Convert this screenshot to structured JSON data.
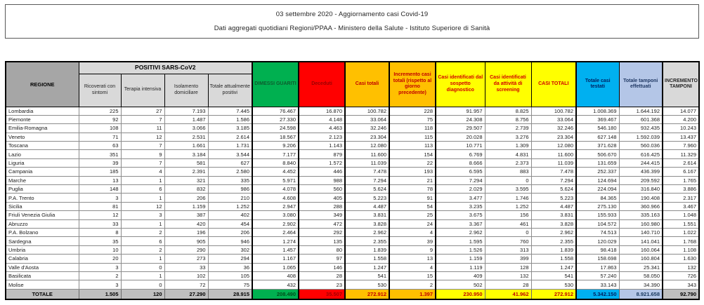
{
  "title": {
    "line1": "03 settembre 2020 - Aggiornamento casi Covid-19",
    "line2": "Dati aggregati quotidiani Regioni/PPAA - Ministero della Salute - Istituto Superiore di Sanità"
  },
  "colors": {
    "green": "#00b050",
    "red": "#ff0000",
    "gold": "#ffc000",
    "yellow": "#ffff00",
    "cyan": "#00b0f0",
    "periwinkle": "#b4c6e7",
    "header_gray": "#a6a6a6",
    "subheader_gray": "#d9d9d9",
    "totale_gray": "#bfbfbf"
  },
  "table": {
    "headers": {
      "regione": "REGIONE",
      "positivi_group": "POSITIVI SARS-CoV2",
      "ricoverati": "Ricoverati con sintomi",
      "terapia": "Terapia intensiva",
      "isolamento": "Isolamento domiciliare",
      "tot_positivi": "Totale attualmente positivi",
      "dimessi": "DIMESSI GUARITI",
      "deceduti": "Deceduti",
      "casi_totali": "Casi totali",
      "incremento_casi": "Incremento casi totali (rispetto al giorno precedente)",
      "sospetto": "Casi identificati dal sospetto diagnostico",
      "screening": "Casi identificati da attività di screening",
      "casi_totali_2": "CASI TOTALI",
      "testati": "Totale casi testati",
      "tamponi": "Totale tamponi effettuati",
      "incremento_tamponi": "INCREMENTO TAMPONI"
    },
    "rows": [
      {
        "regione": "Lombardia",
        "values": [
          "225",
          "27",
          "7.193",
          "7.445",
          "76.467",
          "16.870",
          "100.782",
          "228",
          "91.957",
          "8.825",
          "100.782",
          "1.008.369",
          "1.644.192",
          "14.077"
        ]
      },
      {
        "regione": "Piemonte",
        "values": [
          "92",
          "7",
          "1.487",
          "1.586",
          "27.330",
          "4.148",
          "33.064",
          "75",
          "24.308",
          "8.756",
          "33.064",
          "369.467",
          "601.368",
          "4.200"
        ]
      },
      {
        "regione": "Emilia-Romagna",
        "values": [
          "108",
          "11",
          "3.066",
          "3.185",
          "24.598",
          "4.463",
          "32.246",
          "118",
          "29.507",
          "2.739",
          "32.246",
          "546.180",
          "932.435",
          "10.243"
        ]
      },
      {
        "regione": "Veneto",
        "values": [
          "71",
          "12",
          "2.531",
          "2.614",
          "18.567",
          "2.123",
          "23.304",
          "115",
          "20.028",
          "3.276",
          "23.304",
          "627.148",
          "1.592.039",
          "13.437"
        ]
      },
      {
        "regione": "Toscana",
        "values": [
          "63",
          "7",
          "1.661",
          "1.731",
          "9.206",
          "1.143",
          "12.080",
          "113",
          "10.771",
          "1.309",
          "12.080",
          "371.628",
          "560.036",
          "7.960"
        ]
      },
      {
        "regione": "Lazio",
        "values": [
          "351",
          "9",
          "3.184",
          "3.544",
          "7.177",
          "879",
          "11.600",
          "154",
          "6.769",
          "4.831",
          "11.600",
          "506.670",
          "616.425",
          "11.329"
        ]
      },
      {
        "regione": "Liguria",
        "values": [
          "39",
          "7",
          "581",
          "627",
          "8.840",
          "1.572",
          "11.039",
          "22",
          "8.666",
          "2.373",
          "11.039",
          "131.659",
          "244.415",
          "2.614"
        ]
      },
      {
        "regione": "Campania",
        "values": [
          "185",
          "4",
          "2.391",
          "2.580",
          "4.452",
          "446",
          "7.478",
          "193",
          "6.595",
          "883",
          "7.478",
          "252.337",
          "436.399",
          "6.167"
        ]
      },
      {
        "regione": "Marche",
        "values": [
          "13",
          "1",
          "321",
          "335",
          "5.971",
          "988",
          "7.294",
          "21",
          "7.294",
          "0",
          "7.294",
          "124.694",
          "209.592",
          "1.765"
        ]
      },
      {
        "regione": "Puglia",
        "values": [
          "148",
          "6",
          "832",
          "986",
          "4.078",
          "560",
          "5.624",
          "78",
          "2.029",
          "3.595",
          "5.624",
          "224.094",
          "316.840",
          "3.886"
        ]
      },
      {
        "regione": "P.A. Trento",
        "values": [
          "3",
          "1",
          "206",
          "210",
          "4.608",
          "405",
          "5.223",
          "91",
          "3.477",
          "1.746",
          "5.223",
          "84.365",
          "190.408",
          "2.317"
        ]
      },
      {
        "regione": "Sicilia",
        "values": [
          "81",
          "12",
          "1.159",
          "1.252",
          "2.947",
          "288",
          "4.487",
          "54",
          "3.235",
          "1.252",
          "4.487",
          "275.130",
          "360.966",
          "3.467"
        ]
      },
      {
        "regione": "Friuli Venezia Giulia",
        "values": [
          "12",
          "3",
          "387",
          "402",
          "3.080",
          "349",
          "3.831",
          "25",
          "3.675",
          "156",
          "3.831",
          "155.933",
          "335.163",
          "1.048"
        ]
      },
      {
        "regione": "Abruzzo",
        "values": [
          "33",
          "1",
          "420",
          "454",
          "2.902",
          "472",
          "3.828",
          "24",
          "3.367",
          "461",
          "3.828",
          "104.572",
          "160.980",
          "1.551"
        ]
      },
      {
        "regione": "P.A. Bolzano",
        "values": [
          "8",
          "2",
          "196",
          "206",
          "2.464",
          "292",
          "2.962",
          "4",
          "2.962",
          "0",
          "2.962",
          "74.513",
          "140.710",
          "1.022"
        ]
      },
      {
        "regione": "Sardegna",
        "values": [
          "35",
          "6",
          "905",
          "946",
          "1.274",
          "135",
          "2.355",
          "39",
          "1.595",
          "760",
          "2.355",
          "120.029",
          "141.041",
          "1.768"
        ]
      },
      {
        "regione": "Umbria",
        "values": [
          "10",
          "2",
          "290",
          "302",
          "1.457",
          "80",
          "1.839",
          "9",
          "1.526",
          "313",
          "1.839",
          "98.418",
          "160.064",
          "1.108"
        ]
      },
      {
        "regione": "Calabria",
        "values": [
          "20",
          "1",
          "273",
          "294",
          "1.167",
          "97",
          "1.558",
          "13",
          "1.159",
          "399",
          "1.558",
          "158.698",
          "160.804",
          "1.630"
        ]
      },
      {
        "regione": "Valle d'Aosta",
        "values": [
          "3",
          "0",
          "33",
          "36",
          "1.065",
          "146",
          "1.247",
          "4",
          "1.119",
          "128",
          "1.247",
          "17.863",
          "25.341",
          "132"
        ]
      },
      {
        "regione": "Basilicata",
        "values": [
          "2",
          "1",
          "102",
          "105",
          "408",
          "28",
          "541",
          "15",
          "409",
          "132",
          "541",
          "57.240",
          "58.050",
          "726"
        ]
      },
      {
        "regione": "Molise",
        "values": [
          "3",
          "0",
          "72",
          "75",
          "432",
          "23",
          "530",
          "2",
          "502",
          "28",
          "530",
          "33.143",
          "34.390",
          "343"
        ]
      }
    ],
    "totale": {
      "label": "TOTALE",
      "values": [
        "1.505",
        "120",
        "27.290",
        "28.915",
        "208.490",
        "35.507",
        "272.912",
        "1.397",
        "230.950",
        "41.962",
        "272.912",
        "5.342.150",
        "8.921.658",
        "92.790"
      ]
    }
  }
}
